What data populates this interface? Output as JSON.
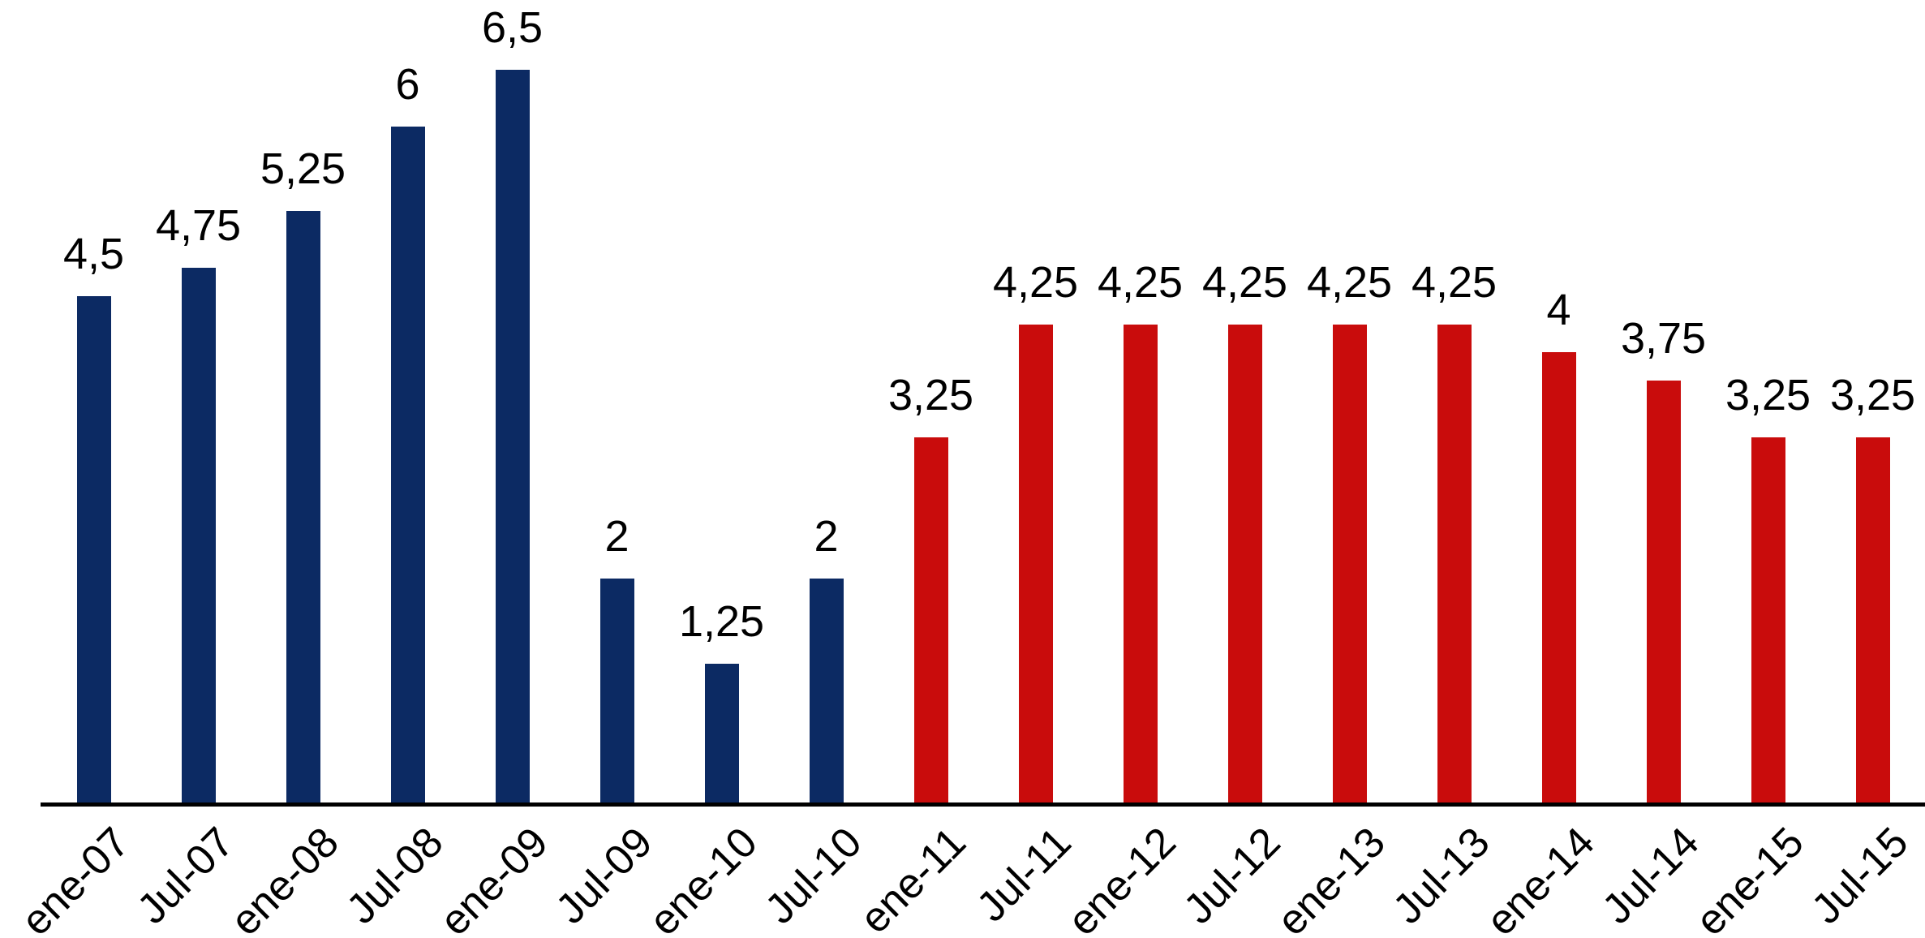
{
  "chart_data": {
    "type": "bar",
    "title": "",
    "xlabel": "",
    "ylabel": "",
    "categories": [
      "ene-07",
      "Jul-07",
      "ene-08",
      "Jul-08",
      "ene-09",
      "Jul-09",
      "ene-10",
      "Jul-10",
      "ene-11",
      "Jul-11",
      "ene-12",
      "Jul-12",
      "ene-13",
      "Jul-13",
      "ene-14",
      "Jul-14",
      "ene-15",
      "Jul-15"
    ],
    "values": [
      4.5,
      4.75,
      5.25,
      6,
      6.5,
      2,
      1.25,
      2,
      3.25,
      4.25,
      4.25,
      4.25,
      4.25,
      4.25,
      4,
      3.75,
      3.25,
      3.25
    ],
    "value_labels": [
      "4,5",
      "4,75",
      "5,25",
      "6",
      "6,5",
      "2",
      "1,25",
      "2",
      "3,25",
      "4,25",
      "4,25",
      "4,25",
      "4,25",
      "4,25",
      "4",
      "3,75",
      "3,25",
      "3,25"
    ],
    "bar_colors": [
      "#0C2A63",
      "#0C2A63",
      "#0C2A63",
      "#0C2A63",
      "#0C2A63",
      "#0C2A63",
      "#0C2A63",
      "#0C2A63",
      "#C90C0C",
      "#C90C0C",
      "#C90C0C",
      "#C90C0C",
      "#C90C0C",
      "#C90C0C",
      "#C90C0C",
      "#C90C0C",
      "#C90C0C",
      "#C90C0C"
    ],
    "palette": {
      "navy": "#0C2A63",
      "red": "#C90C0C"
    },
    "axis_color": "#000000",
    "label_color": "#000000",
    "ylim": [
      0,
      7
    ],
    "grid": false,
    "legend": false,
    "x_tick_rotation_deg": 45,
    "decimal_separator": ","
  }
}
